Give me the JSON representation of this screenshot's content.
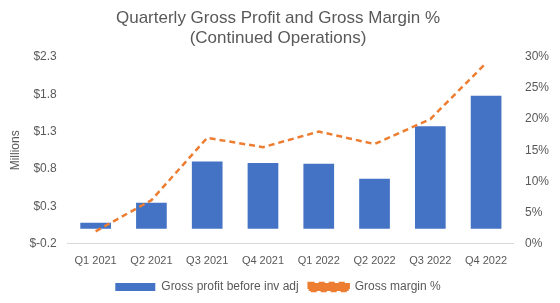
{
  "chart_data": {
    "type": "bar",
    "title": "Quarterly Gross Profit and Gross Margin %",
    "subtitle": "(Continued Operations)",
    "y_label": "Millions",
    "categories": [
      "Q1 2021",
      "Q2 2021",
      "Q3 2021",
      "Q4 2021",
      "Q1 2022",
      "Q2 2022",
      "Q3 2022",
      "Q4 2022"
    ],
    "series": [
      {
        "name": "Gross profit before inv adj",
        "type": "bar",
        "color": "#4472c4",
        "axis": "y",
        "values": [
          0.08,
          0.35,
          0.9,
          0.88,
          0.87,
          0.67,
          1.37,
          1.78
        ]
      },
      {
        "name": "Gross margin %",
        "type": "line",
        "color": "#ed7d31",
        "axis": "y2",
        "line_style": "dashed",
        "marker": "none",
        "values": [
          2,
          7,
          17,
          15.5,
          18,
          16,
          20,
          29
        ]
      }
    ],
    "ylim": [
      -0.2,
      2.3
    ],
    "yticks": [
      {
        "value": -0.2,
        "label": "$-0.2"
      },
      {
        "value": 0.3,
        "label": "$0.3"
      },
      {
        "value": 0.8,
        "label": "$0.8"
      },
      {
        "value": 1.3,
        "label": "$1.3"
      },
      {
        "value": 1.8,
        "label": "$1.8"
      },
      {
        "value": 2.3,
        "label": "$2.3"
      }
    ],
    "y2lim": [
      0,
      30
    ],
    "y2ticks": [
      {
        "value": 0,
        "label": "0%"
      },
      {
        "value": 5,
        "label": "5%"
      },
      {
        "value": 10,
        "label": "10%"
      },
      {
        "value": 15,
        "label": "15%"
      },
      {
        "value": 20,
        "label": "20%"
      },
      {
        "value": 25,
        "label": "25%"
      },
      {
        "value": 30,
        "label": "30%"
      }
    ],
    "grid": false,
    "legend": "bottom"
  }
}
